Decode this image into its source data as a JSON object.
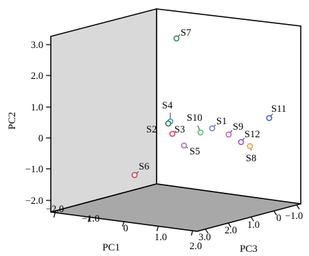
{
  "chart_data": {
    "type": "scatter",
    "projection": "3d",
    "title": "",
    "axes": {
      "x": {
        "label": "PC1",
        "ticks": [
          "−2.0",
          "−1.0",
          "0",
          "1.0",
          "2.0"
        ]
      },
      "y": {
        "label": "PC2",
        "ticks": [
          "−2.0",
          "−1.0",
          "0",
          "1.0",
          "2.0",
          "3.0"
        ]
      },
      "z": {
        "label": "PC3",
        "ticks": [
          "3.0",
          "2.0",
          "1.0",
          "0",
          "−1.0"
        ]
      }
    },
    "grid": false,
    "legend": "none",
    "points": [
      {
        "name": "S7",
        "color": "#2e8b57"
      },
      {
        "name": "S4",
        "color": "#2a9db5"
      },
      {
        "name": "S2",
        "color": "#2f6f4f"
      },
      {
        "name": "S3",
        "color": "#e0405a"
      },
      {
        "name": "S10",
        "color": "#4fc36a"
      },
      {
        "name": "S1",
        "color": "#6a7fd0"
      },
      {
        "name": "S9",
        "color": "#d05ab0"
      },
      {
        "name": "S11",
        "color": "#4a5fc0"
      },
      {
        "name": "S12",
        "color": "#9a50c0"
      },
      {
        "name": "S8",
        "color": "#f0a040"
      },
      {
        "name": "S5",
        "color": "#a070c0"
      },
      {
        "name": "S6",
        "color": "#d04050"
      }
    ]
  }
}
